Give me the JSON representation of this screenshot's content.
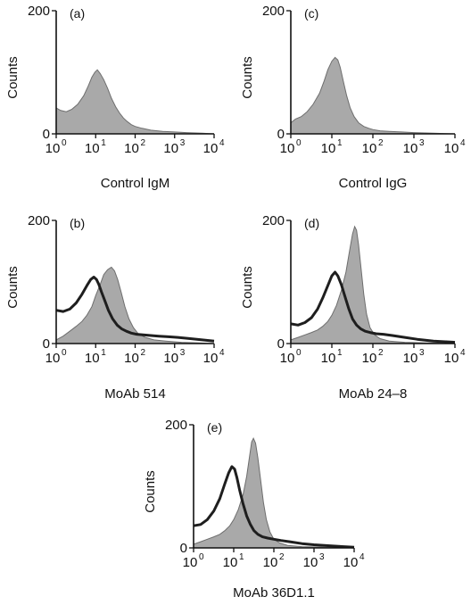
{
  "chart_data": [
    {
      "panel": "(a)",
      "type": "area",
      "xlabel": "Control IgM",
      "ylabel": "Counts",
      "xscale": "log",
      "xlim": [
        1,
        10000
      ],
      "ylim": [
        0,
        200
      ],
      "yticks": [
        0,
        200
      ],
      "xtick_labels": [
        "10",
        "10",
        "10",
        "10",
        "10"
      ],
      "xtick_exponents": [
        "0",
        "1",
        "2",
        "3",
        "4"
      ],
      "series": [
        {
          "style": "filled",
          "x": [
            1,
            1.3,
            1.8,
            2.5,
            3.5,
            5,
            6.5,
            8,
            9.5,
            11,
            13,
            16,
            20,
            25,
            32,
            40,
            50,
            63,
            80,
            100,
            150,
            250,
            500,
            1000,
            2000,
            5000,
            10000
          ],
          "y": [
            42,
            38,
            36,
            40,
            48,
            62,
            78,
            92,
            100,
            104,
            98,
            88,
            74,
            58,
            44,
            34,
            26,
            20,
            15,
            12,
            9,
            6,
            4,
            3,
            2,
            1,
            0
          ]
        }
      ]
    },
    {
      "panel": "(c)",
      "type": "area",
      "xlabel": "Control IgG",
      "ylabel": "Counts",
      "xscale": "log",
      "xlim": [
        1,
        10000
      ],
      "ylim": [
        0,
        200
      ],
      "yticks": [
        0,
        200
      ],
      "xtick_labels": [
        "10",
        "10",
        "10",
        "10",
        "10"
      ],
      "xtick_exponents": [
        "0",
        "1",
        "2",
        "3",
        "4"
      ],
      "series": [
        {
          "style": "filled",
          "x": [
            1,
            1.3,
            1.8,
            2.5,
            3.5,
            5,
            6.5,
            8,
            10,
            12,
            14,
            16,
            19,
            23,
            28,
            35,
            45,
            60,
            80,
            100,
            150,
            250,
            500,
            1000,
            3000,
            10000
          ],
          "y": [
            18,
            24,
            28,
            36,
            48,
            66,
            86,
            104,
            118,
            124,
            120,
            108,
            86,
            62,
            42,
            28,
            18,
            12,
            9,
            7,
            5,
            4,
            3,
            2,
            1,
            0
          ]
        }
      ]
    },
    {
      "panel": "(b)",
      "type": "area",
      "xlabel": "MoAb 514",
      "ylabel": "Counts",
      "xscale": "log",
      "xlim": [
        1,
        10000
      ],
      "ylim": [
        0,
        200
      ],
      "yticks": [
        0,
        200
      ],
      "xtick_labels": [
        "10",
        "10",
        "10",
        "10",
        "10"
      ],
      "xtick_exponents": [
        "0",
        "1",
        "2",
        "3",
        "4"
      ],
      "series": [
        {
          "style": "filled",
          "x": [
            1,
            1.5,
            2.2,
            3.2,
            4.5,
            6,
            8,
            10,
            13,
            16,
            20,
            25,
            30,
            36,
            44,
            55,
            70,
            90,
            120,
            180,
            300,
            600,
            1500,
            4000,
            10000
          ],
          "y": [
            6,
            12,
            20,
            28,
            36,
            46,
            60,
            78,
            96,
            112,
            120,
            124,
            118,
            104,
            84,
            60,
            40,
            26,
            16,
            10,
            6,
            4,
            2,
            1,
            0
          ]
        },
        {
          "style": "outline",
          "x": [
            1,
            1.5,
            2.2,
            3.2,
            4.5,
            6,
            7.5,
            9,
            10.5,
            12,
            14,
            17,
            21,
            27,
            35,
            45,
            60,
            80,
            110,
            160,
            250,
            400,
            700,
            1200,
            2500,
            5000,
            10000
          ],
          "y": [
            54,
            52,
            56,
            66,
            80,
            94,
            104,
            108,
            104,
            96,
            84,
            70,
            54,
            40,
            30,
            24,
            20,
            17,
            15,
            14,
            13,
            12,
            11,
            10,
            8,
            6,
            4
          ]
        }
      ]
    },
    {
      "panel": "(d)",
      "type": "area",
      "xlabel": "MoAb 24–8",
      "ylabel": "Counts",
      "xscale": "log",
      "xlim": [
        1,
        10000
      ],
      "ylim": [
        0,
        200
      ],
      "yticks": [
        0,
        200
      ],
      "xtick_labels": [
        "10",
        "10",
        "10",
        "10",
        "10"
      ],
      "xtick_exponents": [
        "0",
        "1",
        "2",
        "3",
        "4"
      ],
      "series": [
        {
          "style": "filled",
          "x": [
            1,
            1.5,
            2.2,
            3.2,
            4.5,
            6,
            8,
            10,
            13,
            17,
            22,
            27,
            32,
            36,
            40,
            45,
            52,
            60,
            70,
            85,
            110,
            150,
            250,
            600,
            2000,
            10000
          ],
          "y": [
            6,
            10,
            14,
            18,
            22,
            28,
            36,
            46,
            62,
            86,
            116,
            150,
            178,
            190,
            184,
            160,
            120,
            80,
            48,
            26,
            14,
            8,
            4,
            2,
            1,
            0
          ]
        },
        {
          "style": "outline",
          "x": [
            1,
            1.5,
            2.2,
            3.2,
            4.5,
            6,
            8,
            10,
            12,
            14,
            17,
            21,
            26,
            32,
            40,
            50,
            65,
            85,
            120,
            180,
            300,
            600,
            1200,
            3000,
            10000
          ],
          "y": [
            32,
            30,
            34,
            42,
            56,
            74,
            94,
            110,
            116,
            110,
            96,
            76,
            56,
            40,
            30,
            24,
            20,
            18,
            16,
            15,
            13,
            10,
            7,
            4,
            2
          ]
        }
      ]
    },
    {
      "panel": "(e)",
      "type": "area",
      "xlabel": "MoAb 36D1.1",
      "ylabel": "Counts",
      "xscale": "log",
      "xlim": [
        1,
        10000
      ],
      "ylim": [
        0,
        200
      ],
      "yticks": [
        0,
        200
      ],
      "xtick_labels": [
        "10",
        "10",
        "10",
        "10",
        "10"
      ],
      "xtick_exponents": [
        "0",
        "1",
        "2",
        "3",
        "4"
      ],
      "series": [
        {
          "style": "filled",
          "x": [
            1,
            1.5,
            2.2,
            3.2,
            4.5,
            6,
            8,
            10,
            13,
            17,
            21,
            25,
            28,
            31,
            35,
            40,
            47,
            55,
            65,
            80,
            100,
            140,
            220,
            500,
            2000,
            10000
          ],
          "y": [
            6,
            10,
            14,
            18,
            22,
            28,
            36,
            46,
            62,
            86,
            116,
            150,
            172,
            178,
            170,
            146,
            110,
            74,
            46,
            26,
            14,
            8,
            4,
            2,
            1,
            0
          ]
        },
        {
          "style": "outline",
          "x": [
            1,
            1.5,
            2.2,
            3.2,
            4.5,
            6,
            7.5,
            9,
            10.5,
            12,
            14,
            17,
            21,
            26,
            32,
            40,
            52,
            70,
            100,
            150,
            250,
            500,
            1000,
            3000,
            10000
          ],
          "y": [
            36,
            38,
            46,
            60,
            80,
            104,
            122,
            132,
            128,
            114,
            94,
            72,
            52,
            38,
            28,
            22,
            18,
            16,
            14,
            12,
            10,
            7,
            5,
            3,
            1
          ]
        }
      ]
    }
  ]
}
